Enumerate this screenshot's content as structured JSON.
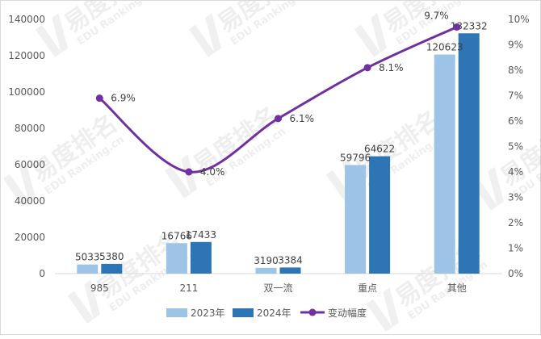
{
  "chart_data": {
    "type": "bar",
    "categories": [
      "985",
      "211",
      "双一流",
      "重点",
      "其他"
    ],
    "series": [
      {
        "name": "2023年",
        "values": [
          5033,
          16766,
          3190,
          59796,
          120623
        ],
        "color": "#9dc3e6"
      },
      {
        "name": "2024年",
        "values": [
          5380,
          17433,
          3384,
          64622,
          132332
        ],
        "color": "#2e75b6"
      }
    ],
    "line_series": {
      "name": "变动幅度",
      "values": [
        6.9,
        4.0,
        6.1,
        8.1,
        9.7
      ],
      "labels": [
        "6.9%",
        "4.0%",
        "6.1%",
        "8.1%",
        "9.7%"
      ],
      "color": "#7030a0"
    },
    "ylim": [
      0,
      140000
    ],
    "y_ticks": [
      "0",
      "20000",
      "40000",
      "60000",
      "80000",
      "100000",
      "120000",
      "140000"
    ],
    "y2lim": [
      0,
      10
    ],
    "y2_ticks": [
      "0%",
      "1%",
      "2%",
      "3%",
      "4%",
      "5%",
      "6%",
      "7%",
      "8%",
      "9%",
      "10%"
    ],
    "legend_position": "bottom",
    "grid": false
  },
  "watermark": {
    "text": "易度排名",
    "subtext": "EDU Ranking.cn"
  }
}
